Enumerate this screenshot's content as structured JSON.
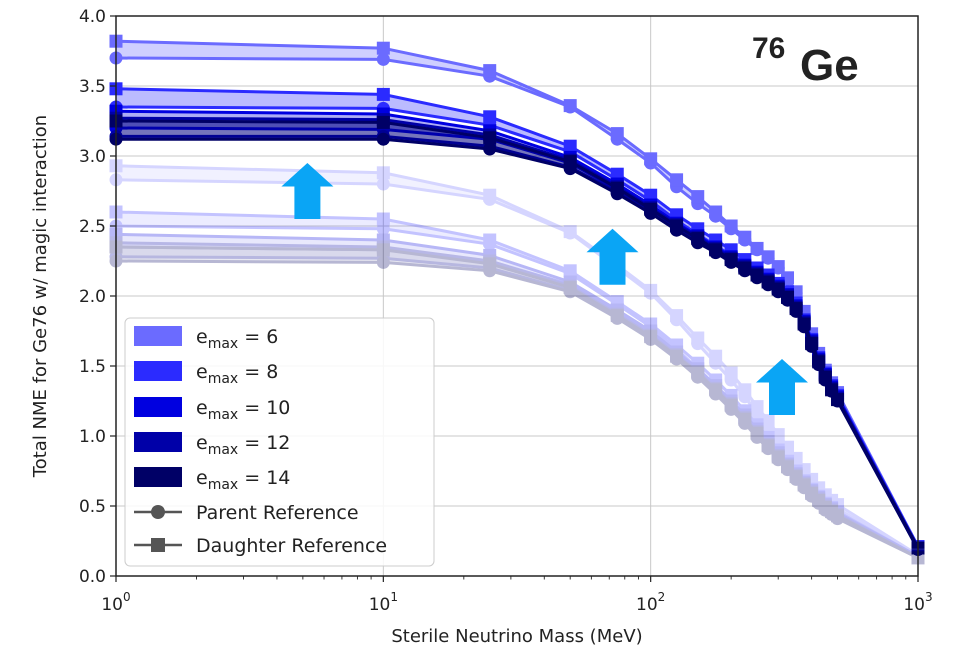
{
  "chart_data": {
    "type": "line",
    "annotation": "76Ge",
    "annotation_parts": {
      "mass_number": "76",
      "element": "Ge"
    },
    "xlabel": "Sterile Neutrino Mass (MeV)",
    "ylabel": "Total NME for Ge76 w/ magic interaction",
    "xscale": "log",
    "xlim": [
      1,
      1000
    ],
    "ylim": [
      0.0,
      4.0
    ],
    "grid": true,
    "legend_placement": "lower-left",
    "x_ticks": [
      {
        "value": 1,
        "base": "10",
        "exp": "0"
      },
      {
        "value": 10,
        "base": "10",
        "exp": "1"
      },
      {
        "value": 100,
        "base": "10",
        "exp": "2"
      },
      {
        "value": 1000,
        "base": "10",
        "exp": "3"
      }
    ],
    "y_ticks": [
      "0.0",
      "0.5",
      "1.0",
      "1.5",
      "2.0",
      "2.5",
      "3.0",
      "3.5",
      "4.0"
    ],
    "x": [
      1,
      10,
      25,
      50,
      75,
      100,
      125,
      150,
      175,
      200,
      225,
      250,
      275,
      300,
      325,
      350,
      375,
      400,
      425,
      450,
      475,
      500,
      1000
    ],
    "legend": {
      "emax_prefix": "e",
      "emax_sub": "max",
      "emax_values": [
        "6",
        "8",
        "10",
        "12",
        "14"
      ],
      "parent_label": "Parent Reference",
      "daughter_label": "Daughter Reference"
    },
    "colors": [
      "#6b6bff",
      "#2b2bff",
      "#0000e0",
      "#0000a8",
      "#000066"
    ],
    "arrow_color": "#0aa5f5",
    "groups": [
      {
        "name": "upper",
        "alpha": 1.0,
        "series": [
          {
            "emax": "6",
            "parent": [
              3.7,
              3.69,
              3.57,
              3.35,
              3.12,
              2.95,
              2.78,
              2.66,
              2.57,
              2.48,
              2.4,
              2.33,
              2.27,
              2.2,
              2.12,
              2.02,
              1.88,
              1.72,
              1.58,
              1.46,
              1.37,
              1.3,
              0.2
            ],
            "daughter": [
              3.82,
              3.77,
              3.61,
              3.36,
              3.16,
              2.98,
              2.83,
              2.71,
              2.6,
              2.5,
              2.42,
              2.34,
              2.28,
              2.21,
              2.13,
              2.03,
              1.89,
              1.73,
              1.59,
              1.47,
              1.38,
              1.31,
              0.21
            ]
          },
          {
            "emax": "8",
            "parent": [
              3.35,
              3.34,
              3.22,
              3.03,
              2.83,
              2.68,
              2.54,
              2.44,
              2.36,
              2.29,
              2.23,
              2.17,
              2.12,
              2.07,
              2.01,
              1.93,
              1.81,
              1.67,
              1.54,
              1.43,
              1.35,
              1.28,
              0.2
            ],
            "daughter": [
              3.48,
              3.44,
              3.28,
              3.07,
              2.87,
              2.72,
              2.58,
              2.48,
              2.4,
              2.33,
              2.26,
              2.2,
              2.15,
              2.09,
              2.03,
              1.95,
              1.83,
              1.69,
              1.56,
              1.45,
              1.36,
              1.29,
              0.21
            ]
          },
          {
            "emax": "10",
            "parent": [
              3.2,
              3.19,
              3.12,
              2.95,
              2.76,
              2.62,
              2.49,
              2.4,
              2.33,
              2.26,
              2.2,
              2.15,
              2.1,
              2.05,
              1.99,
              1.91,
              1.8,
              1.66,
              1.53,
              1.42,
              1.34,
              1.27,
              0.19
            ],
            "daughter": [
              3.32,
              3.3,
              3.18,
              2.99,
              2.8,
              2.65,
              2.52,
              2.43,
              2.35,
              2.28,
              2.22,
              2.17,
              2.12,
              2.07,
              2.01,
              1.93,
              1.82,
              1.68,
              1.55,
              1.44,
              1.35,
              1.28,
              0.2
            ]
          },
          {
            "emax": "12",
            "parent": [
              3.14,
              3.14,
              3.07,
              2.92,
              2.74,
              2.6,
              2.48,
              2.39,
              2.32,
              2.25,
              2.19,
              2.14,
              2.09,
              2.04,
              1.98,
              1.9,
              1.79,
              1.65,
              1.52,
              1.41,
              1.33,
              1.26,
              0.19
            ],
            "daughter": [
              3.27,
              3.26,
              3.15,
              2.97,
              2.78,
              2.63,
              2.51,
              2.42,
              2.34,
              2.27,
              2.21,
              2.16,
              2.11,
              2.06,
              2.0,
              1.92,
              1.81,
              1.67,
              1.54,
              1.43,
              1.34,
              1.27,
              0.2
            ]
          },
          {
            "emax": "14",
            "parent": [
              3.12,
              3.12,
              3.05,
              2.91,
              2.73,
              2.59,
              2.47,
              2.38,
              2.31,
              2.24,
              2.18,
              2.13,
              2.08,
              2.03,
              1.97,
              1.89,
              1.78,
              1.64,
              1.51,
              1.4,
              1.32,
              1.25,
              0.19
            ],
            "daughter": [
              3.25,
              3.24,
              3.13,
              2.96,
              2.77,
              2.62,
              2.5,
              2.41,
              2.33,
              2.26,
              2.2,
              2.15,
              2.1,
              2.05,
              1.99,
              1.91,
              1.8,
              1.66,
              1.53,
              1.42,
              1.33,
              1.26,
              0.2
            ]
          }
        ]
      },
      {
        "name": "lower",
        "alpha": 0.28,
        "series": [
          {
            "emax": "6",
            "parent": [
              2.83,
              2.8,
              2.69,
              2.45,
              2.2,
              2.02,
              1.83,
              1.66,
              1.52,
              1.4,
              1.28,
              1.16,
              1.06,
              0.96,
              0.88,
              0.8,
              0.73,
              0.66,
              0.6,
              0.55,
              0.51,
              0.48,
              0.15
            ],
            "daughter": [
              2.93,
              2.88,
              2.72,
              2.46,
              2.22,
              2.04,
              1.86,
              1.7,
              1.57,
              1.45,
              1.33,
              1.21,
              1.11,
              1.01,
              0.92,
              0.84,
              0.76,
              0.69,
              0.63,
              0.58,
              0.54,
              0.51,
              0.15
            ]
          },
          {
            "emax": "8",
            "parent": [
              2.5,
              2.48,
              2.37,
              2.16,
              1.94,
              1.78,
              1.62,
              1.48,
              1.36,
              1.25,
              1.14,
              1.04,
              0.95,
              0.87,
              0.79,
              0.72,
              0.66,
              0.6,
              0.55,
              0.5,
              0.47,
              0.44,
              0.14
            ],
            "daughter": [
              2.6,
              2.55,
              2.4,
              2.18,
              1.96,
              1.8,
              1.65,
              1.52,
              1.4,
              1.29,
              1.18,
              1.08,
              0.99,
              0.9,
              0.82,
              0.75,
              0.68,
              0.62,
              0.57,
              0.52,
              0.49,
              0.46,
              0.14
            ]
          },
          {
            "emax": "10",
            "parent": [
              2.35,
              2.33,
              2.25,
              2.08,
              1.88,
              1.73,
              1.58,
              1.45,
              1.33,
              1.22,
              1.12,
              1.02,
              0.93,
              0.85,
              0.78,
              0.71,
              0.65,
              0.59,
              0.54,
              0.49,
              0.46,
              0.43,
              0.13
            ],
            "daughter": [
              2.44,
              2.4,
              2.29,
              2.1,
              1.9,
              1.75,
              1.6,
              1.48,
              1.36,
              1.25,
              1.15,
              1.05,
              0.96,
              0.88,
              0.8,
              0.73,
              0.67,
              0.61,
              0.56,
              0.51,
              0.48,
              0.45,
              0.14
            ]
          },
          {
            "emax": "12",
            "parent": [
              2.28,
              2.27,
              2.2,
              2.04,
              1.85,
              1.7,
              1.56,
              1.43,
              1.31,
              1.2,
              1.1,
              1.0,
              0.92,
              0.84,
              0.77,
              0.7,
              0.64,
              0.58,
              0.53,
              0.48,
              0.45,
              0.42,
              0.13
            ],
            "daughter": [
              2.38,
              2.35,
              2.25,
              2.07,
              1.87,
              1.72,
              1.58,
              1.46,
              1.34,
              1.23,
              1.13,
              1.03,
              0.94,
              0.86,
              0.79,
              0.72,
              0.66,
              0.6,
              0.55,
              0.5,
              0.47,
              0.44,
              0.13
            ]
          },
          {
            "emax": "14",
            "parent": [
              2.25,
              2.24,
              2.18,
              2.03,
              1.84,
              1.69,
              1.55,
              1.42,
              1.3,
              1.19,
              1.09,
              0.99,
              0.91,
              0.83,
              0.76,
              0.69,
              0.63,
              0.57,
              0.52,
              0.47,
              0.44,
              0.41,
              0.13
            ],
            "daughter": [
              2.35,
              2.33,
              2.23,
              2.06,
              1.86,
              1.71,
              1.57,
              1.45,
              1.33,
              1.22,
              1.12,
              1.02,
              0.93,
              0.85,
              0.78,
              0.71,
              0.65,
              0.59,
              0.54,
              0.49,
              0.46,
              0.43,
              0.13
            ]
          }
        ]
      }
    ],
    "arrows": [
      {
        "x": 5.2,
        "y_base": 2.55,
        "y_tip": 2.95
      },
      {
        "x": 72,
        "y_base": 2.08,
        "y_tip": 2.48
      },
      {
        "x": 310,
        "y_base": 1.15,
        "y_tip": 1.55
      }
    ]
  }
}
